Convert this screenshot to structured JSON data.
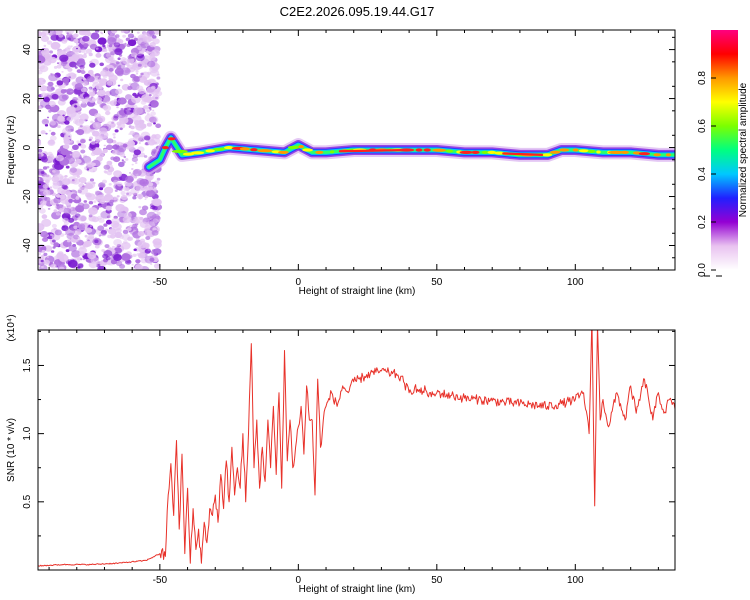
{
  "title": "C2E2.2026.095.19.44.G17",
  "chart_data": [
    {
      "type": "heatmap",
      "xlabel": "Height of straight line (km)",
      "ylabel": "Frequency (Hz)",
      "xlim": [
        -94,
        136
      ],
      "ylim": [
        -50,
        48
      ],
      "xticks": [
        -50,
        0,
        50,
        100
      ],
      "yticks": [
        -40,
        -20,
        0,
        20,
        40
      ],
      "tick_labels_x": [
        "-50",
        "0",
        "50",
        "100"
      ],
      "tick_labels_y": [
        "-40",
        "-20",
        "0",
        "20",
        "40"
      ],
      "noise_region_x": [
        -94,
        -54
      ],
      "ridge": {
        "x": [
          -54,
          -50,
          -48,
          -46,
          -42,
          -35,
          -25,
          -15,
          -5,
          0,
          5,
          10,
          20,
          30,
          40,
          50,
          60,
          70,
          80,
          90,
          95,
          100,
          110,
          120,
          130,
          136
        ],
        "y": [
          -8,
          -5,
          0,
          4,
          -3,
          -2,
          0,
          -1,
          -2,
          1,
          -2,
          -2,
          -1,
          -1,
          -1,
          -1,
          -2,
          -2,
          -3,
          -3,
          -1,
          -1,
          -2,
          -2,
          -3,
          -3
        ]
      },
      "colorbar": {
        "label": "Normalized spectral amplitude",
        "range": [
          0,
          1
        ],
        "ticks": [
          0.0,
          0.2,
          0.4,
          0.6,
          0.8
        ],
        "tick_labels": [
          "0.0",
          "0.2",
          "0.4",
          "0.6",
          "0.8"
        ],
        "colors": [
          "#ffffff",
          "#e9c2f0",
          "#9400d3",
          "#2020ff",
          "#00c8ff",
          "#00ff80",
          "#7cff00",
          "#ffff00",
          "#ff9900",
          "#ff0000",
          "#ff007f"
        ]
      },
      "grid": false
    },
    {
      "type": "line",
      "xlabel": "Height of straight line (km)",
      "ylabel": "SNR (10 * v/v)",
      "scale_label": "(x10⁴)",
      "xlim": [
        -94,
        136
      ],
      "ylim": [
        0,
        1.76
      ],
      "xticks": [
        -50,
        0,
        50,
        100
      ],
      "yticks": [
        0.5,
        1.0,
        1.5
      ],
      "tick_labels_x": [
        "-50",
        "0",
        "50",
        "100"
      ],
      "tick_labels_y": [
        "0.5",
        "1.0",
        "1.5"
      ],
      "color": "#e8322a",
      "grid": false,
      "series": [
        {
          "x": [
            -94,
            -85,
            -75,
            -65,
            -55,
            -50,
            -48,
            -47,
            -46,
            -45,
            -44,
            -43,
            -42,
            -41,
            -40,
            -39,
            -38,
            -37,
            -36,
            -35,
            -34,
            -33,
            -32,
            -31,
            -30,
            -29,
            -28,
            -27,
            -26,
            -25,
            -24,
            -23,
            -22,
            -21,
            -20,
            -19,
            -18,
            -17,
            -16,
            -15,
            -14,
            -13,
            -12,
            -11,
            -10,
            -9,
            -8,
            -7,
            -6,
            -5,
            -4,
            -3,
            -2,
            -1,
            0,
            1,
            2,
            3,
            4,
            5,
            6,
            7,
            8,
            9,
            10,
            12,
            14,
            16,
            18,
            20,
            22,
            24,
            26,
            28,
            30,
            32,
            34,
            36,
            38,
            40,
            42,
            44,
            46,
            48,
            50,
            55,
            60,
            65,
            70,
            75,
            80,
            85,
            90,
            95,
            100,
            103,
            105,
            106,
            107,
            108,
            109,
            110,
            112,
            115,
            118,
            120,
            122,
            125,
            128,
            130,
            132,
            134,
            136
          ],
          "y": [
            0.03,
            0.04,
            0.04,
            0.05,
            0.07,
            0.12,
            0.1,
            0.55,
            0.78,
            0.4,
            0.95,
            0.3,
            0.85,
            0.12,
            0.6,
            0.05,
            0.45,
            0.15,
            0.3,
            0.05,
            0.35,
            0.2,
            0.45,
            0.4,
            0.55,
            0.35,
            0.7,
            0.45,
            0.8,
            0.5,
            0.9,
            0.55,
            0.75,
            0.6,
            1.0,
            0.5,
            1.0,
            1.66,
            0.75,
            1.1,
            0.6,
            0.9,
            0.65,
            1.1,
            0.75,
            1.2,
            0.7,
            1.3,
            0.6,
            1.61,
            0.8,
            1.1,
            0.75,
            0.9,
            1.05,
            1.2,
            0.85,
            1.35,
            1.1,
            1.1,
            0.55,
            1.4,
            0.9,
            1.1,
            1.2,
            1.3,
            1.2,
            1.35,
            1.3,
            1.38,
            1.4,
            1.42,
            1.44,
            1.45,
            1.46,
            1.45,
            1.44,
            1.43,
            1.38,
            1.3,
            1.34,
            1.3,
            1.32,
            1.27,
            1.3,
            1.28,
            1.26,
            1.25,
            1.24,
            1.23,
            1.22,
            1.21,
            1.2,
            1.22,
            1.25,
            1.3,
            1.0,
            1.85,
            0.47,
            1.8,
            1.1,
            1.25,
            1.05,
            1.3,
            1.1,
            1.35,
            1.15,
            1.4,
            1.1,
            1.3,
            1.15,
            1.25,
            1.18
          ]
        }
      ]
    }
  ]
}
